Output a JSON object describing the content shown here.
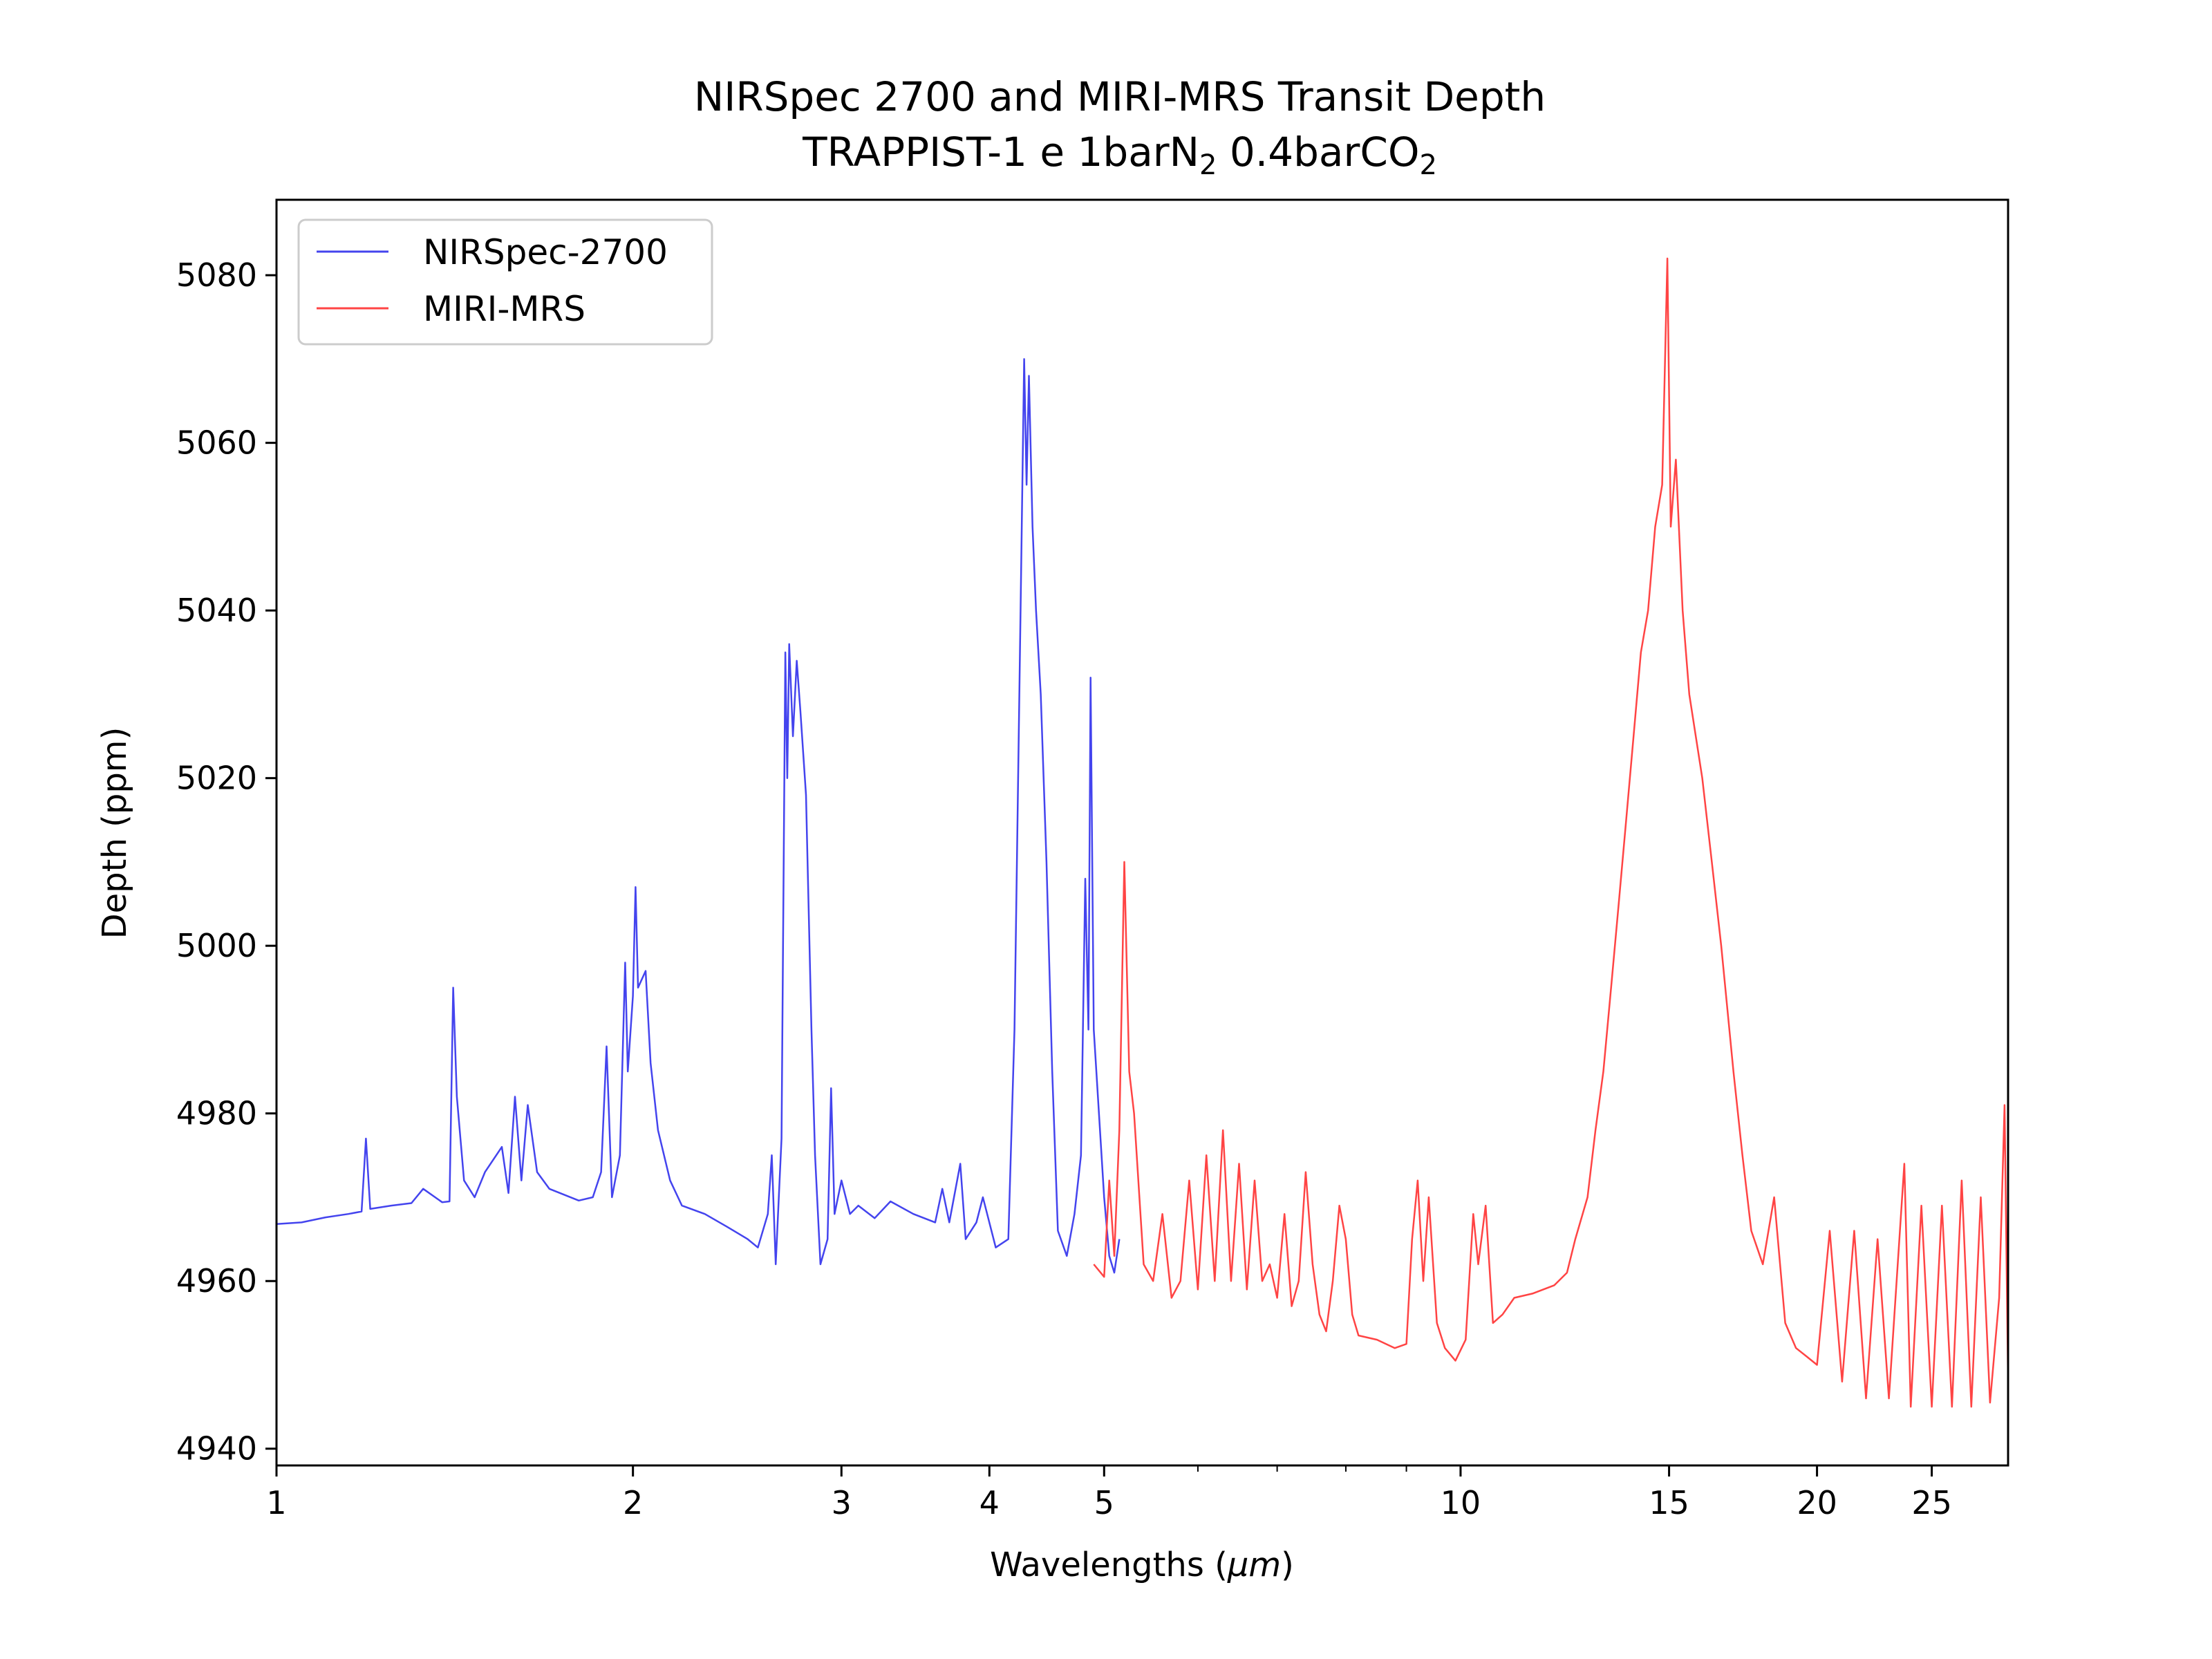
{
  "chart_data": {
    "type": "line",
    "title": {
      "line1": "NIRSpec 2700 and MIRI-MRS Transit Depth",
      "line2_prefix": "TRAPPIST-1 e 1barN",
      "line2_sub1": "2",
      "line2_mid": " 0.4barCO",
      "line2_sub2": "2"
    },
    "xlabel_prefix": "Wavelengths (",
    "xlabel_unit": "μm",
    "xlabel_suffix": ")",
    "ylabel": "Depth (ppm)",
    "xscale": "log",
    "xlim": [
      1.0,
      29.0
    ],
    "ylim": [
      4938.0,
      5089.0
    ],
    "xticks": [
      {
        "value": 1,
        "label": "1"
      },
      {
        "value": 2,
        "label": "2"
      },
      {
        "value": 3,
        "label": "3"
      },
      {
        "value": 4,
        "label": "4"
      },
      {
        "value": 5,
        "label": "5"
      },
      {
        "value": 10,
        "label": "10"
      },
      {
        "value": 15,
        "label": "15"
      },
      {
        "value": 20,
        "label": "20"
      },
      {
        "value": 25,
        "label": "25"
      }
    ],
    "minor_xticks": [
      6,
      7,
      8,
      9
    ],
    "yticks": [
      {
        "value": 4940,
        "label": "4940"
      },
      {
        "value": 4960,
        "label": "4960"
      },
      {
        "value": 4980,
        "label": "4980"
      },
      {
        "value": 5000,
        "label": "5000"
      },
      {
        "value": 5020,
        "label": "5020"
      },
      {
        "value": 5040,
        "label": "5040"
      },
      {
        "value": 5060,
        "label": "5060"
      },
      {
        "value": 5080,
        "label": "5080"
      }
    ],
    "grid": false,
    "legend_position": "top-left",
    "series": [
      {
        "name": "NIRSpec-2700",
        "color": "#4444ee",
        "points": [
          [
            1.0,
            4966.8
          ],
          [
            1.05,
            4967.0
          ],
          [
            1.1,
            4967.6
          ],
          [
            1.15,
            4968.0
          ],
          [
            1.18,
            4968.3
          ],
          [
            1.19,
            4977.0
          ],
          [
            1.2,
            4968.6
          ],
          [
            1.25,
            4969.0
          ],
          [
            1.3,
            4969.3
          ],
          [
            1.33,
            4971.0
          ],
          [
            1.38,
            4969.4
          ],
          [
            1.4,
            4969.5
          ],
          [
            1.41,
            4995.0
          ],
          [
            1.42,
            4982.0
          ],
          [
            1.44,
            4972.0
          ],
          [
            1.47,
            4970.0
          ],
          [
            1.5,
            4973.0
          ],
          [
            1.55,
            4976.0
          ],
          [
            1.57,
            4970.5
          ],
          [
            1.59,
            4982.0
          ],
          [
            1.61,
            4972.0
          ],
          [
            1.63,
            4981.0
          ],
          [
            1.66,
            4973.0
          ],
          [
            1.7,
            4971.0
          ],
          [
            1.8,
            4969.6
          ],
          [
            1.85,
            4970.0
          ],
          [
            1.88,
            4973.0
          ],
          [
            1.9,
            4988.0
          ],
          [
            1.92,
            4970.0
          ],
          [
            1.95,
            4975.0
          ],
          [
            1.97,
            4998.0
          ],
          [
            1.98,
            4985.0
          ],
          [
            2.0,
            4994.0
          ],
          [
            2.01,
            5007.0
          ],
          [
            2.02,
            4995.0
          ],
          [
            2.05,
            4997.0
          ],
          [
            2.07,
            4986.0
          ],
          [
            2.1,
            4978.0
          ],
          [
            2.15,
            4972.0
          ],
          [
            2.2,
            4969.0
          ],
          [
            2.3,
            4968.0
          ],
          [
            2.4,
            4966.5
          ],
          [
            2.5,
            4965.0
          ],
          [
            2.55,
            4964.0
          ],
          [
            2.6,
            4968.0
          ],
          [
            2.62,
            4975.0
          ],
          [
            2.64,
            4962.0
          ],
          [
            2.67,
            4977.0
          ],
          [
            2.69,
            5035.0
          ],
          [
            2.7,
            5020.0
          ],
          [
            2.71,
            5036.0
          ],
          [
            2.73,
            5025.0
          ],
          [
            2.75,
            5034.0
          ],
          [
            2.77,
            5028.0
          ],
          [
            2.8,
            5018.0
          ],
          [
            2.83,
            4990.0
          ],
          [
            2.85,
            4975.0
          ],
          [
            2.88,
            4962.0
          ],
          [
            2.92,
            4965.0
          ],
          [
            2.94,
            4983.0
          ],
          [
            2.96,
            4968.0
          ],
          [
            3.0,
            4972.0
          ],
          [
            3.05,
            4968.0
          ],
          [
            3.1,
            4969.0
          ],
          [
            3.2,
            4967.5
          ],
          [
            3.3,
            4969.5
          ],
          [
            3.45,
            4968.0
          ],
          [
            3.6,
            4967.0
          ],
          [
            3.65,
            4971.0
          ],
          [
            3.7,
            4967.0
          ],
          [
            3.78,
            4974.0
          ],
          [
            3.82,
            4965.0
          ],
          [
            3.9,
            4967.0
          ],
          [
            3.95,
            4970.0
          ],
          [
            4.05,
            4964.0
          ],
          [
            4.15,
            4965.0
          ],
          [
            4.2,
            4990.0
          ],
          [
            4.25,
            5040.0
          ],
          [
            4.28,
            5070.0
          ],
          [
            4.3,
            5055.0
          ],
          [
            4.32,
            5068.0
          ],
          [
            4.35,
            5050.0
          ],
          [
            4.38,
            5040.0
          ],
          [
            4.42,
            5030.0
          ],
          [
            4.47,
            5010.0
          ],
          [
            4.52,
            4985.0
          ],
          [
            4.57,
            4966.0
          ],
          [
            4.65,
            4963.0
          ],
          [
            4.72,
            4968.0
          ],
          [
            4.78,
            4975.0
          ],
          [
            4.82,
            5008.0
          ],
          [
            4.85,
            4990.0
          ],
          [
            4.87,
            5032.0
          ],
          [
            4.9,
            4990.0
          ],
          [
            4.95,
            4980.0
          ],
          [
            5.0,
            4970.0
          ],
          [
            5.05,
            4963.0
          ],
          [
            5.1,
            4961.0
          ],
          [
            5.15,
            4965.0
          ]
        ]
      },
      {
        "name": "MIRI-MRS",
        "color": "#ff4444",
        "points": [
          [
            4.9,
            4962.0
          ],
          [
            5.0,
            4960.5
          ],
          [
            5.05,
            4972.0
          ],
          [
            5.1,
            4963.0
          ],
          [
            5.15,
            4978.0
          ],
          [
            5.2,
            5010.0
          ],
          [
            5.25,
            4985.0
          ],
          [
            5.3,
            4980.0
          ],
          [
            5.4,
            4962.0
          ],
          [
            5.5,
            4960.0
          ],
          [
            5.6,
            4968.0
          ],
          [
            5.7,
            4958.0
          ],
          [
            5.8,
            4960.0
          ],
          [
            5.9,
            4972.0
          ],
          [
            6.0,
            4959.0
          ],
          [
            6.1,
            4975.0
          ],
          [
            6.2,
            4960.0
          ],
          [
            6.3,
            4978.0
          ],
          [
            6.4,
            4960.0
          ],
          [
            6.5,
            4974.0
          ],
          [
            6.6,
            4959.0
          ],
          [
            6.7,
            4972.0
          ],
          [
            6.8,
            4960.0
          ],
          [
            6.9,
            4962.0
          ],
          [
            7.0,
            4958.0
          ],
          [
            7.1,
            4968.0
          ],
          [
            7.2,
            4957.0
          ],
          [
            7.3,
            4960.0
          ],
          [
            7.4,
            4973.0
          ],
          [
            7.5,
            4962.0
          ],
          [
            7.6,
            4956.0
          ],
          [
            7.7,
            4954.0
          ],
          [
            7.8,
            4960.0
          ],
          [
            7.9,
            4969.0
          ],
          [
            8.0,
            4965.0
          ],
          [
            8.1,
            4956.0
          ],
          [
            8.2,
            4953.5
          ],
          [
            8.5,
            4953.0
          ],
          [
            8.8,
            4952.0
          ],
          [
            9.0,
            4952.5
          ],
          [
            9.1,
            4965.0
          ],
          [
            9.2,
            4972.0
          ],
          [
            9.3,
            4960.0
          ],
          [
            9.4,
            4970.0
          ],
          [
            9.55,
            4955.0
          ],
          [
            9.7,
            4952.0
          ],
          [
            9.9,
            4950.5
          ],
          [
            10.1,
            4953.0
          ],
          [
            10.25,
            4968.0
          ],
          [
            10.35,
            4962.0
          ],
          [
            10.5,
            4969.0
          ],
          [
            10.65,
            4955.0
          ],
          [
            10.85,
            4956.0
          ],
          [
            11.1,
            4958.0
          ],
          [
            11.5,
            4958.5
          ],
          [
            12.0,
            4959.5
          ],
          [
            12.3,
            4961.0
          ],
          [
            12.5,
            4965.0
          ],
          [
            12.8,
            4970.0
          ],
          [
            13.0,
            4978.0
          ],
          [
            13.2,
            4985.0
          ],
          [
            13.4,
            4995.0
          ],
          [
            13.6,
            5005.0
          ],
          [
            13.8,
            5015.0
          ],
          [
            14.0,
            5025.0
          ],
          [
            14.2,
            5035.0
          ],
          [
            14.4,
            5040.0
          ],
          [
            14.6,
            5050.0
          ],
          [
            14.8,
            5055.0
          ],
          [
            14.95,
            5082.0
          ],
          [
            15.05,
            5050.0
          ],
          [
            15.2,
            5058.0
          ],
          [
            15.4,
            5040.0
          ],
          [
            15.6,
            5030.0
          ],
          [
            15.8,
            5025.0
          ],
          [
            16.0,
            5020.0
          ],
          [
            16.3,
            5010.0
          ],
          [
            16.6,
            5000.0
          ],
          [
            17.0,
            4985.0
          ],
          [
            17.3,
            4975.0
          ],
          [
            17.6,
            4966.0
          ],
          [
            18.0,
            4962.0
          ],
          [
            18.4,
            4970.0
          ],
          [
            18.8,
            4955.0
          ],
          [
            19.2,
            4952.0
          ],
          [
            19.6,
            4951.0
          ],
          [
            20.0,
            4950.0
          ],
          [
            20.5,
            4966.0
          ],
          [
            21.0,
            4948.0
          ],
          [
            21.5,
            4966.0
          ],
          [
            22.0,
            4946.0
          ],
          [
            22.5,
            4965.0
          ],
          [
            23.0,
            4946.0
          ],
          [
            23.7,
            4974.0
          ],
          [
            24.0,
            4945.0
          ],
          [
            24.5,
            4969.0
          ],
          [
            25.0,
            4945.0
          ],
          [
            25.5,
            4969.0
          ],
          [
            26.0,
            4945.0
          ],
          [
            26.5,
            4972.0
          ],
          [
            27.0,
            4945.0
          ],
          [
            27.5,
            4970.0
          ],
          [
            28.0,
            4945.5
          ],
          [
            28.5,
            4958.0
          ],
          [
            28.8,
            4981.0
          ],
          [
            29.0,
            4948.0
          ]
        ]
      }
    ]
  }
}
